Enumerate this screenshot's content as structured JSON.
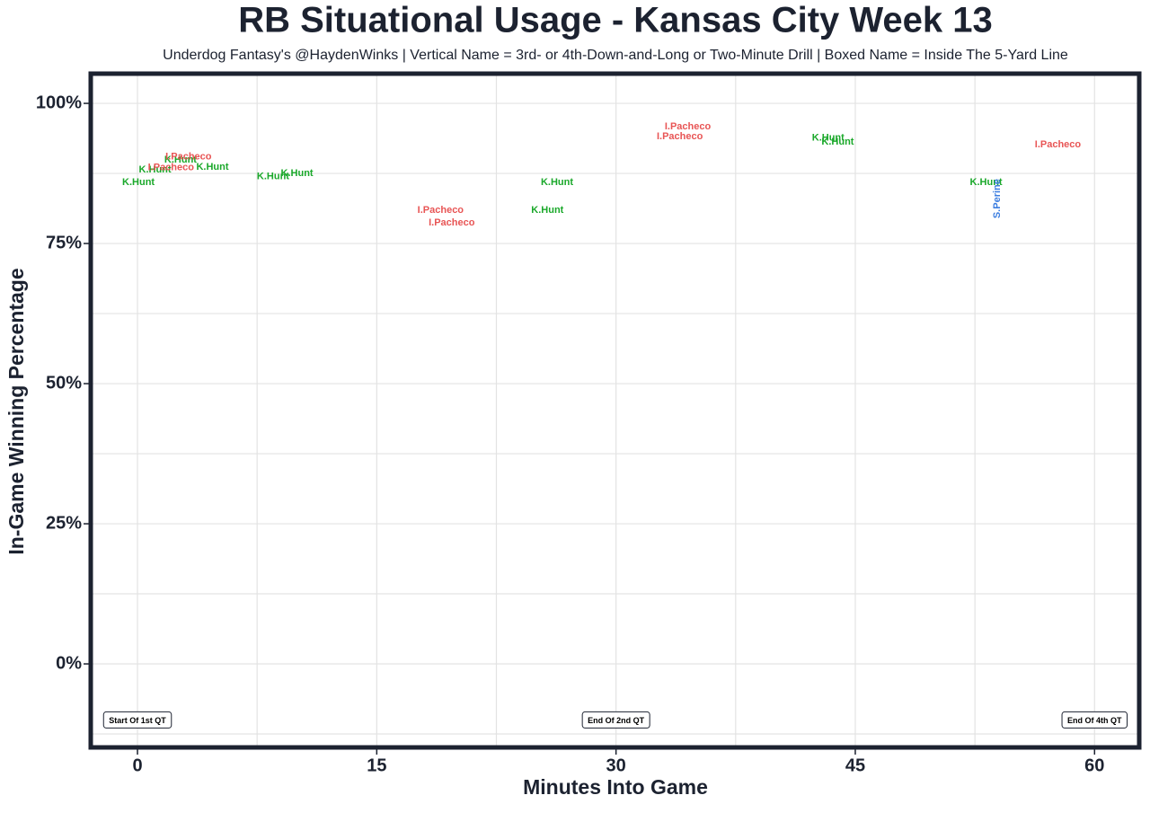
{
  "chart_data": {
    "type": "scatter",
    "title": "RB Situational Usage - Kansas City Week 13",
    "subtitle": "Underdog Fantasy's @HaydenWinks | Vertical Name = 3rd- or 4th-Down-and-Long or Two-Minute Drill | Boxed Name = Inside The 5-Yard Line",
    "x_label": "Minutes Into Game",
    "y_label": "In-Game Winning Percentage",
    "xlim": [
      -2.93,
      62.8
    ],
    "ylim": [
      -14.9,
      105.3
    ],
    "xticks": [
      0,
      15,
      30,
      45,
      60
    ],
    "x_minor_ticks": [
      7.5,
      22.5,
      37.5,
      52.5
    ],
    "yticks": [
      {
        "value": 0,
        "label": "0%"
      },
      {
        "value": 25,
        "label": "25%"
      },
      {
        "value": 50,
        "label": "50%"
      },
      {
        "value": 75,
        "label": "75%"
      },
      {
        "value": 100,
        "label": "100%"
      }
    ],
    "y_minor_ticks": [
      -12.5,
      12.5,
      37.5,
      62.5,
      87.5
    ],
    "grid": true,
    "series": [
      {
        "name": "K.Hunt",
        "color": "#1aa82a",
        "x": [
          0.06,
          1.1,
          2.7,
          4.7,
          8.5,
          10.0,
          26.3,
          25.7,
          43.3,
          43.9,
          53.2
        ],
        "values": [
          85.9,
          88.1,
          89.9,
          88.6,
          86.9,
          87.5,
          85.9,
          80.9,
          93.8,
          93.1,
          85.9
        ]
      },
      {
        "name": "I.Pacheco",
        "color": "#e85555",
        "x": [
          3.2,
          2.1,
          19.0,
          19.7,
          34.5,
          34.0,
          57.7
        ],
        "values": [
          90.5,
          88.5,
          80.9,
          78.7,
          95.8,
          94.1,
          92.6
        ]
      },
      {
        "name": "S.Perine",
        "color": "#3b7de0",
        "vertical": true,
        "x": [
          53.9
        ],
        "values": [
          83.0
        ]
      }
    ],
    "annotations": [
      {
        "text": "Start Of 1st QT",
        "x": 0,
        "y": -10
      },
      {
        "text": "End Of 2nd QT",
        "x": 30,
        "y": -10
      },
      {
        "text": "End Of 4th QT",
        "x": 60,
        "y": -10
      }
    ]
  }
}
